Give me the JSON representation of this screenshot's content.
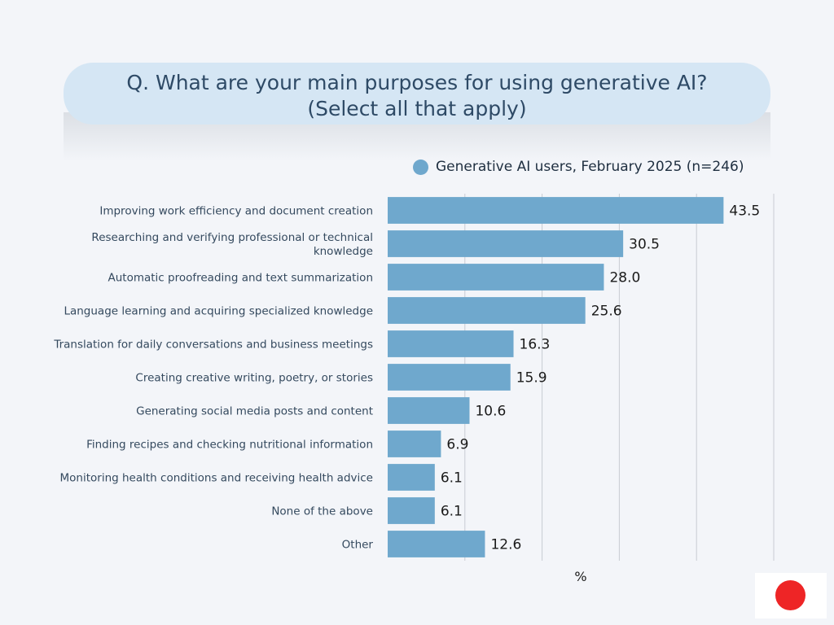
{
  "header": {
    "title_line1": "Q. What are your main purposes for using generative AI?",
    "title_line2": "(Select all that apply)"
  },
  "legend": {
    "label": "Generative AI users, February 2025 (n=246)"
  },
  "colors": {
    "bar": "#6fa8cd",
    "title_bg": "#d5e6f4",
    "background": "#f3f5f9",
    "flag_red": "#ee2526"
  },
  "flag": {
    "icon": "japan-flag-icon"
  },
  "chart_data": {
    "type": "bar",
    "orientation": "horizontal",
    "categories": [
      [
        "Improving work efficiency and document creation"
      ],
      [
        "Researching and verifying professional or technical",
        "knowledge"
      ],
      [
        "Automatic proofreading and text summarization"
      ],
      [
        "Language learning and acquiring specialized knowledge"
      ],
      [
        "Translation for daily conversations and business meetings"
      ],
      [
        "Creating creative writing, poetry, or stories"
      ],
      [
        "Generating social media posts and content"
      ],
      [
        "Finding recipes and checking nutritional information"
      ],
      [
        "Monitoring health conditions and receiving health advice"
      ],
      [
        "None of the above"
      ],
      [
        "Other"
      ]
    ],
    "series": [
      {
        "name": "Generative AI users, February 2025 (n=246)",
        "values": [
          43.5,
          30.5,
          28.0,
          25.6,
          16.3,
          15.9,
          10.6,
          6.9,
          6.1,
          6.1,
          12.6
        ]
      }
    ],
    "value_labels": [
      "43.5",
      "30.5",
      "28.0",
      "25.6",
      "16.3",
      "15.9",
      "10.6",
      "6.9",
      "6.1",
      "6.1",
      "12.6"
    ],
    "xlabel": "%",
    "xlim": [
      0,
      50
    ],
    "gridlines": [
      0,
      10,
      20,
      30,
      40,
      50
    ],
    "grid": true,
    "legend_position": "top-right"
  }
}
